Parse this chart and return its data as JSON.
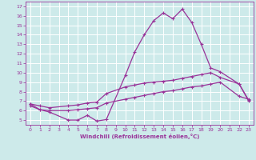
{
  "xlabel": "Windchill (Refroidissement éolien,°C)",
  "bg_color": "#cdeaea",
  "grid_color": "#ffffff",
  "line_color": "#993399",
  "xlim": [
    -0.5,
    23.5
  ],
  "ylim": [
    4.5,
    17.5
  ],
  "yticks": [
    5,
    6,
    7,
    8,
    9,
    10,
    11,
    12,
    13,
    14,
    15,
    16,
    17
  ],
  "xticks": [
    0,
    1,
    2,
    3,
    4,
    5,
    6,
    7,
    8,
    9,
    10,
    11,
    12,
    13,
    14,
    15,
    16,
    17,
    18,
    19,
    20,
    21,
    22,
    23
  ],
  "line1_x": [
    0,
    1,
    2,
    4,
    5,
    6,
    7,
    8,
    10,
    11,
    12,
    13,
    14,
    15,
    16,
    17,
    18,
    19,
    20,
    22,
    23
  ],
  "line1_y": [
    6.7,
    6.1,
    5.85,
    5.0,
    5.0,
    5.5,
    4.9,
    5.05,
    9.7,
    12.2,
    14.0,
    15.5,
    16.3,
    15.7,
    16.7,
    15.3,
    13.0,
    10.5,
    10.1,
    8.8,
    7.1
  ],
  "line2_x": [
    0,
    1,
    2,
    4,
    5,
    6,
    7,
    8,
    10,
    11,
    12,
    13,
    14,
    15,
    16,
    17,
    18,
    19,
    20,
    22,
    23
  ],
  "line2_y": [
    6.7,
    6.5,
    6.3,
    6.5,
    6.6,
    6.8,
    6.9,
    7.8,
    8.5,
    8.7,
    8.9,
    9.0,
    9.1,
    9.2,
    9.4,
    9.6,
    9.8,
    10.0,
    9.5,
    8.8,
    7.0
  ],
  "line3_x": [
    0,
    1,
    2,
    4,
    5,
    6,
    7,
    8,
    10,
    11,
    12,
    13,
    14,
    15,
    16,
    17,
    18,
    19,
    20,
    22,
    23
  ],
  "line3_y": [
    6.5,
    6.1,
    6.0,
    6.0,
    6.1,
    6.2,
    6.3,
    6.8,
    7.2,
    7.4,
    7.6,
    7.8,
    8.0,
    8.1,
    8.3,
    8.5,
    8.6,
    8.8,
    9.0,
    7.5,
    7.2
  ]
}
